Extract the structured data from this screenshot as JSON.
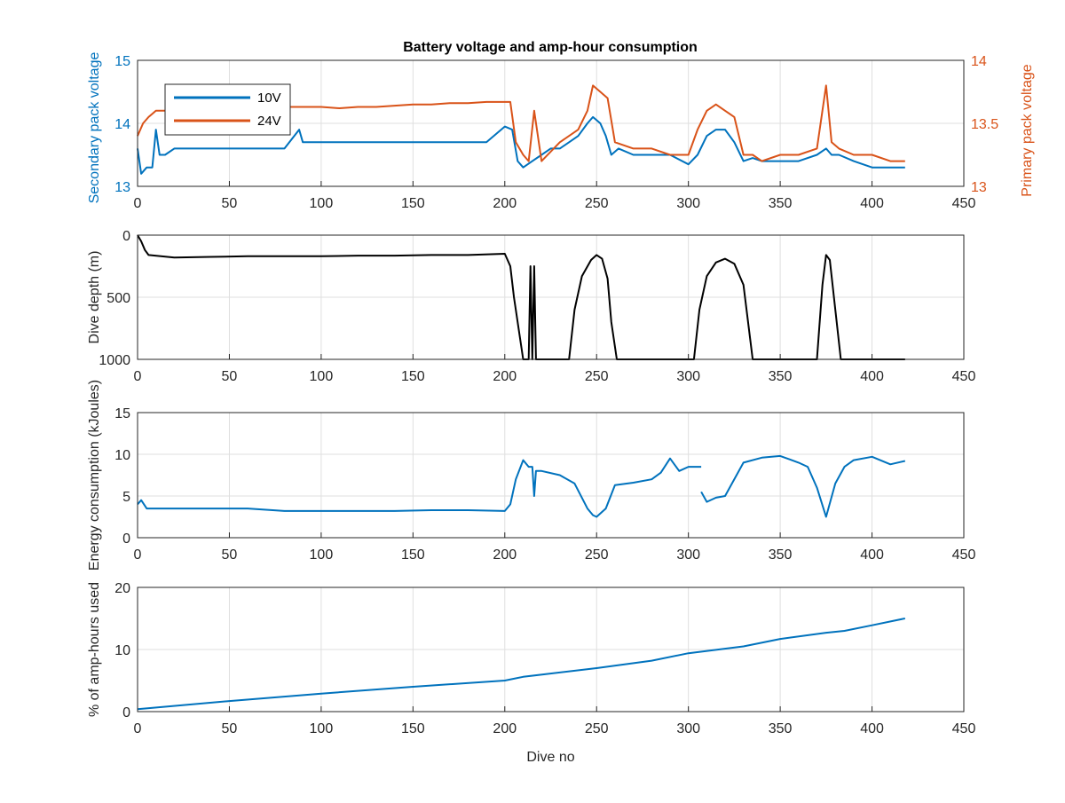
{
  "figure": {
    "title": "Battery voltage and amp-hour consumption"
  },
  "colors": {
    "blue": "#0072BD",
    "orange": "#D95319",
    "black": "#000000",
    "axis": "#262626",
    "grid": "#dfdfdf"
  },
  "chart_data": [
    {
      "type": "line",
      "title": "Battery voltage and amp-hour consumption",
      "xlabel": "",
      "ylabel_left": "Secondary pack voltage",
      "ylabel_right": "Primary pack voltage",
      "xlim": [
        0,
        450
      ],
      "ylim_left": [
        13,
        15
      ],
      "ylim_right": [
        13,
        14
      ],
      "x_ticks": [
        0,
        50,
        100,
        150,
        200,
        250,
        300,
        350,
        400,
        450
      ],
      "y_ticks_left": [
        "13",
        "14",
        "15"
      ],
      "y_ticks_right": [
        "13",
        "13.5",
        "14"
      ],
      "grid": true,
      "legend": "top-left",
      "series": [
        {
          "name": "10V",
          "axis": "left",
          "color": "#0072BD",
          "x": [
            0,
            2,
            5,
            8,
            10,
            12,
            15,
            20,
            30,
            40,
            50,
            60,
            70,
            80,
            88,
            90,
            100,
            110,
            120,
            130,
            140,
            150,
            160,
            170,
            180,
            190,
            200,
            204,
            207,
            210,
            215,
            220,
            225,
            230,
            235,
            240,
            245,
            248,
            252,
            255,
            258,
            262,
            270,
            280,
            290,
            300,
            305,
            310,
            315,
            320,
            325,
            330,
            335,
            340,
            350,
            360,
            370,
            375,
            378,
            382,
            390,
            400,
            410,
            418
          ],
          "y": [
            13.6,
            13.2,
            13.3,
            13.3,
            13.9,
            13.5,
            13.5,
            13.6,
            13.6,
            13.6,
            13.6,
            13.6,
            13.6,
            13.6,
            13.9,
            13.7,
            13.7,
            13.7,
            13.7,
            13.7,
            13.7,
            13.7,
            13.7,
            13.7,
            13.7,
            13.7,
            13.95,
            13.9,
            13.4,
            13.3,
            13.4,
            13.5,
            13.6,
            13.6,
            13.7,
            13.8,
            14.0,
            14.1,
            14.0,
            13.8,
            13.5,
            13.6,
            13.5,
            13.5,
            13.5,
            13.35,
            13.5,
            13.8,
            13.9,
            13.9,
            13.7,
            13.4,
            13.45,
            13.4,
            13.4,
            13.4,
            13.5,
            13.6,
            13.5,
            13.5,
            13.4,
            13.3,
            13.3,
            13.3
          ]
        },
        {
          "name": "24V",
          "axis": "right",
          "color": "#D95319",
          "x": [
            0,
            3,
            6,
            10,
            15,
            20,
            30,
            40,
            50,
            60,
            70,
            80,
            90,
            100,
            110,
            120,
            130,
            140,
            150,
            160,
            170,
            180,
            190,
            200,
            203,
            206,
            210,
            213,
            216,
            220,
            230,
            240,
            245,
            248,
            252,
            256,
            260,
            270,
            280,
            290,
            300,
            305,
            310,
            315,
            320,
            325,
            330,
            335,
            340,
            350,
            360,
            370,
            375,
            378,
            382,
            390,
            400,
            410,
            418
          ],
          "y": [
            13.4,
            13.5,
            13.55,
            13.6,
            13.6,
            13.62,
            13.62,
            13.62,
            13.63,
            13.63,
            13.62,
            13.63,
            13.63,
            13.63,
            13.62,
            13.63,
            13.63,
            13.64,
            13.65,
            13.65,
            13.66,
            13.66,
            13.67,
            13.67,
            13.67,
            13.35,
            13.25,
            13.2,
            13.6,
            13.2,
            13.35,
            13.45,
            13.6,
            13.8,
            13.75,
            13.7,
            13.35,
            13.3,
            13.3,
            13.25,
            13.25,
            13.45,
            13.6,
            13.65,
            13.6,
            13.55,
            13.25,
            13.25,
            13.2,
            13.25,
            13.25,
            13.3,
            13.8,
            13.35,
            13.3,
            13.25,
            13.25,
            13.2,
            13.2
          ]
        }
      ]
    },
    {
      "type": "line",
      "title": "",
      "xlabel": "",
      "ylabel": "Dive depth (m)",
      "xlim": [
        0,
        450
      ],
      "ylim": [
        0,
        1000
      ],
      "y_reversed": true,
      "x_ticks": [
        0,
        50,
        100,
        150,
        200,
        250,
        300,
        350,
        400,
        450
      ],
      "y_ticks": [
        "0",
        "500",
        "1000"
      ],
      "grid": true,
      "series": [
        {
          "color": "#000000",
          "x": [
            0,
            2,
            4,
            6,
            20,
            40,
            60,
            80,
            100,
            120,
            140,
            160,
            180,
            200,
            203,
            205,
            210,
            213,
            214,
            215,
            216,
            217,
            218,
            235,
            238,
            242,
            247,
            250,
            253,
            256,
            258,
            261,
            263,
            300,
            303,
            306,
            310,
            315,
            320,
            325,
            330,
            335,
            355,
            370,
            373,
            375,
            377,
            380,
            383,
            400,
            418
          ],
          "y": [
            0,
            50,
            120,
            160,
            180,
            175,
            170,
            170,
            170,
            165,
            165,
            160,
            160,
            150,
            250,
            500,
            1000,
            1000,
            250,
            1000,
            250,
            1000,
            1000,
            1000,
            600,
            330,
            200,
            160,
            190,
            350,
            700,
            1000,
            1000,
            1000,
            1000,
            600,
            330,
            220,
            190,
            230,
            400,
            1000,
            1000,
            1000,
            400,
            160,
            200,
            600,
            1000,
            1000,
            1000
          ]
        }
      ]
    },
    {
      "type": "line",
      "title": "",
      "xlabel": "",
      "ylabel": "Energy consumption (kJoules)",
      "xlim": [
        0,
        450
      ],
      "ylim": [
        0,
        15
      ],
      "x_ticks": [
        0,
        50,
        100,
        150,
        200,
        250,
        300,
        350,
        400,
        450
      ],
      "y_ticks": [
        "0",
        "5",
        "10",
        "15"
      ],
      "grid": true,
      "series": [
        {
          "color": "#0072BD",
          "x": [
            0,
            2,
            5,
            20,
            40,
            60,
            80,
            100,
            120,
            140,
            160,
            180,
            200,
            203,
            206,
            210,
            213,
            215,
            216,
            217,
            220,
            230,
            238,
            245,
            248,
            250,
            255,
            260,
            270,
            280,
            285,
            290,
            295,
            300,
            307,
            null,
            307,
            310,
            315,
            320,
            330,
            340,
            350,
            360,
            365,
            370,
            375,
            380,
            385,
            390,
            400,
            410,
            418
          ],
          "y": [
            4.0,
            4.5,
            3.5,
            3.5,
            3.5,
            3.5,
            3.2,
            3.2,
            3.2,
            3.2,
            3.3,
            3.3,
            3.2,
            4.0,
            7.0,
            9.3,
            8.5,
            8.5,
            5.0,
            8.0,
            8.0,
            7.5,
            6.5,
            3.5,
            2.7,
            2.5,
            3.5,
            6.3,
            6.6,
            7.0,
            7.8,
            9.5,
            8.0,
            8.5,
            8.5,
            null,
            5.5,
            4.3,
            4.8,
            5.0,
            9.0,
            9.6,
            9.8,
            9.0,
            8.5,
            6.0,
            2.5,
            6.5,
            8.5,
            9.3,
            9.7,
            8.8,
            9.2
          ]
        }
      ]
    },
    {
      "type": "line",
      "title": "",
      "xlabel": "Dive no",
      "ylabel": "% of amp-hours used",
      "xlim": [
        0,
        450
      ],
      "ylim": [
        0,
        20
      ],
      "x_ticks": [
        0,
        50,
        100,
        150,
        200,
        250,
        300,
        350,
        400,
        450
      ],
      "y_ticks": [
        "0",
        "10",
        "20"
      ],
      "grid": true,
      "series": [
        {
          "color": "#0072BD",
          "x": [
            0,
            50,
            100,
            150,
            200,
            210,
            250,
            280,
            300,
            330,
            350,
            375,
            385,
            400,
            418
          ],
          "y": [
            0.4,
            1.7,
            2.9,
            4.0,
            5.0,
            5.6,
            7.0,
            8.2,
            9.4,
            10.5,
            11.7,
            12.7,
            13.0,
            13.9,
            15.0
          ]
        }
      ]
    }
  ]
}
